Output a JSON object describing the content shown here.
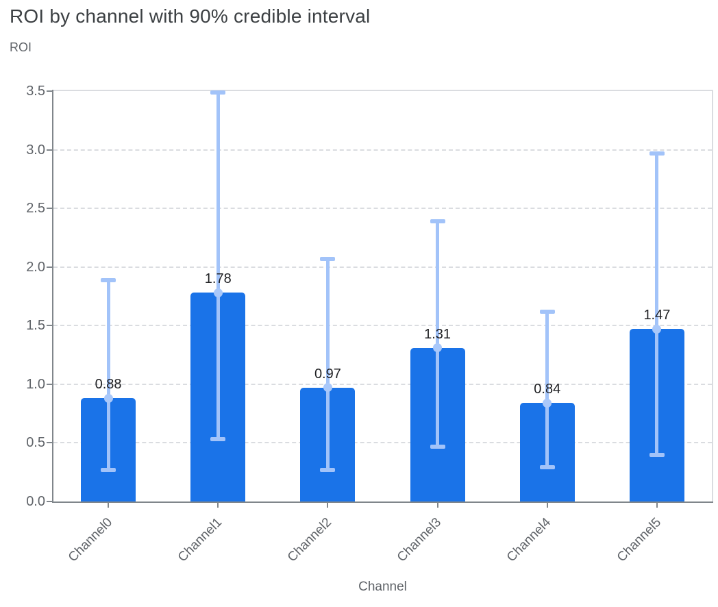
{
  "chart_data": {
    "type": "bar",
    "title": "ROI by channel with 90% credible interval",
    "ylabel": "ROI",
    "xlabel": "Channel",
    "categories": [
      "Channel0",
      "Channel1",
      "Channel2",
      "Channel3",
      "Channel4",
      "Channel5"
    ],
    "values": [
      0.88,
      1.78,
      0.97,
      1.31,
      0.84,
      1.47
    ],
    "value_labels": [
      "0.88",
      "1.78",
      "0.97",
      "1.31",
      "0.84",
      "1.47"
    ],
    "error_low": [
      0.27,
      0.53,
      0.27,
      0.47,
      0.29,
      0.4
    ],
    "error_high": [
      1.89,
      3.49,
      2.07,
      2.39,
      1.62,
      2.97
    ],
    "error_bar_kind": "90% credible interval with caps and mean dot",
    "ylim": [
      0,
      3.5
    ],
    "y_ticks": [
      0.0,
      0.5,
      1.0,
      1.5,
      2.0,
      2.5,
      3.0,
      3.5
    ],
    "grid": "horizontal dashed gridlines at each 0.5 step",
    "legend": "none",
    "colors": {
      "bar": "#1a73e8",
      "error_bar": "#a2c3f9",
      "mean_dot": "#a9c8fa",
      "title_text": "#3c4043",
      "axis_text": "#5f6368",
      "value_label_text": "#202124",
      "gridline": "#dadce0",
      "axis_line": "#80868b",
      "background": "#ffffff"
    }
  }
}
